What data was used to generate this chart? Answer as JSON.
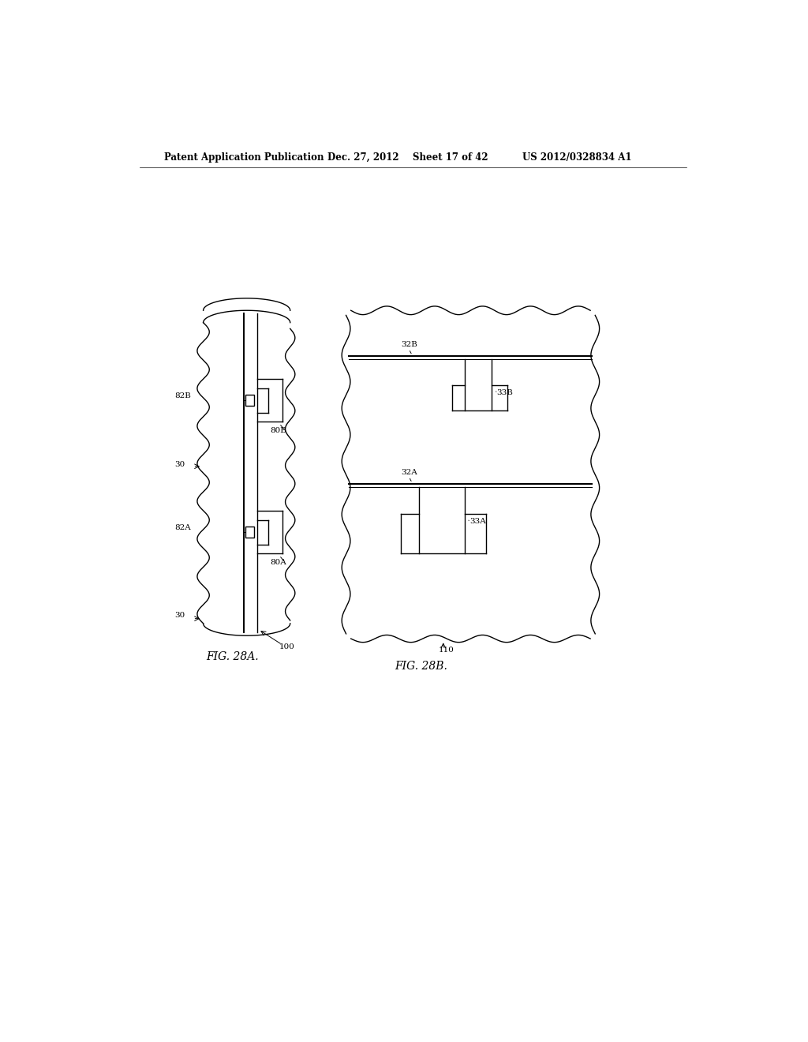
{
  "bg_color": "#ffffff",
  "header_text": "Patent Application Publication",
  "header_date": "Dec. 27, 2012",
  "header_sheet": "Sheet 17 of 42",
  "header_patent": "US 2012/0328834 A1",
  "fig_label_a": "FIG. 28A.",
  "fig_label_b": "FIG. 28B."
}
